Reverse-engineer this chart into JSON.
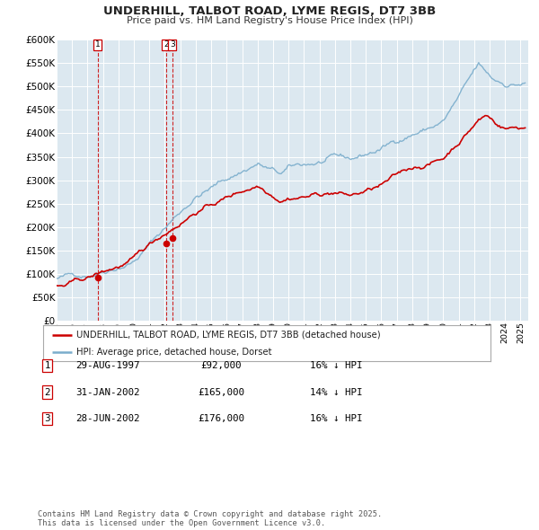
{
  "title": "UNDERHILL, TALBOT ROAD, LYME REGIS, DT7 3BB",
  "subtitle": "Price paid vs. HM Land Registry's House Price Index (HPI)",
  "legend_line1": "UNDERHILL, TALBOT ROAD, LYME REGIS, DT7 3BB (detached house)",
  "legend_line2": "HPI: Average price, detached house, Dorset",
  "red_color": "#cc0000",
  "blue_color": "#7aadcc",
  "bg_color": "#dce8f0",
  "grid_color": "#ffffff",
  "sale_points": [
    {
      "year": 1997.66,
      "price": 92000,
      "label": "1"
    },
    {
      "year": 2002.08,
      "price": 165000,
      "label": "2"
    },
    {
      "year": 2002.49,
      "price": 176000,
      "label": "3"
    }
  ],
  "table_rows": [
    {
      "num": "1",
      "date": "29-AUG-1997",
      "price": "£92,000",
      "hpi": "16% ↓ HPI"
    },
    {
      "num": "2",
      "date": "31-JAN-2002",
      "price": "£165,000",
      "hpi": "14% ↓ HPI"
    },
    {
      "num": "3",
      "date": "28-JUN-2002",
      "price": "£176,000",
      "hpi": "16% ↓ HPI"
    }
  ],
  "footer": "Contains HM Land Registry data © Crown copyright and database right 2025.\nThis data is licensed under the Open Government Licence v3.0.",
  "ylim": [
    0,
    600000
  ],
  "yticks": [
    0,
    50000,
    100000,
    150000,
    200000,
    250000,
    300000,
    350000,
    400000,
    450000,
    500000,
    550000,
    600000
  ],
  "xlim_start": 1995.0,
  "xlim_end": 2025.5
}
